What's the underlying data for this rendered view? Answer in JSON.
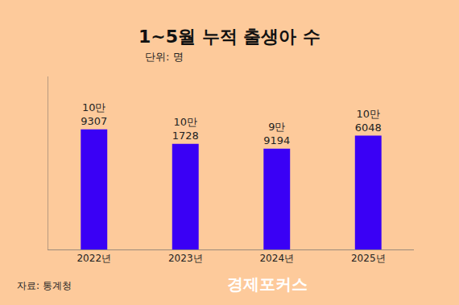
{
  "chart_data": {
    "type": "bar",
    "title": "1~5월 누적 출생아 수",
    "subtitle": "단위: 명",
    "categories": [
      "2022년",
      "2023년",
      "2024년",
      "2025년"
    ],
    "values": [
      109307,
      101728,
      99194,
      106048
    ],
    "value_labels": [
      "10만\n9307",
      "10만\n1728",
      "9만\n9194",
      "10만\n6048"
    ],
    "data_labels": true,
    "color": "#3a00f5",
    "ylim": [
      46500,
      137000
    ],
    "yticks": [],
    "grid": false,
    "tick_labels": "x",
    "source": "자료: 통계청",
    "watermark": "경제포커스"
  }
}
